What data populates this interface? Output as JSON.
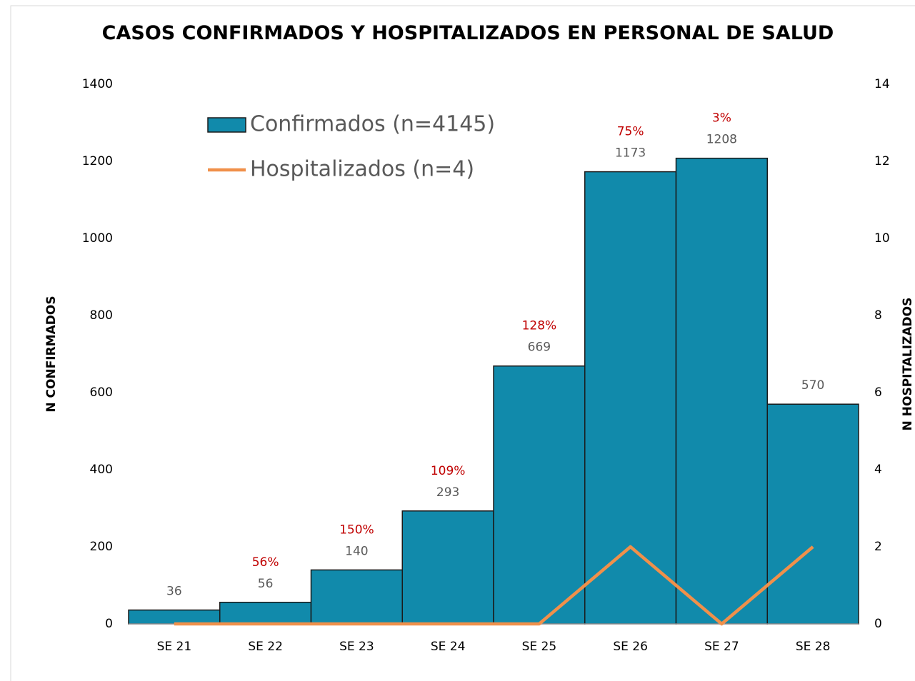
{
  "chart_data": {
    "type": "bar",
    "title": "CASOS CONFIRMADOS Y HOSPITALIZADOS EN PERSONAL DE SALUD",
    "ylabel": "N CONFIRMADOS",
    "y2label": "N HOSPITALIZADOS",
    "categories": [
      "SE 21",
      "SE 22",
      "SE 23",
      "SE 24",
      "SE 25",
      "SE 26",
      "SE 27",
      "SE 28"
    ],
    "series": [
      {
        "name": "Confirmados (n=4145)",
        "type": "bar",
        "color": "#118aab",
        "values": [
          36,
          56,
          140,
          293,
          669,
          1173,
          1208,
          570
        ]
      },
      {
        "name": "Hospitalizados (n=4)",
        "type": "line",
        "axis": "y2",
        "color": "#f0904a",
        "values": [
          0,
          0,
          0,
          0,
          0,
          2,
          0,
          2
        ]
      }
    ],
    "annotations": {
      "color": "#c00000",
      "values": [
        null,
        56,
        150,
        109,
        128,
        75,
        3,
        null
      ],
      "value_labels": [
        null,
        "56%",
        "150%",
        "109%",
        "128%",
        "75%",
        "3%",
        null
      ]
    },
    "ylim": [
      0,
      1400
    ],
    "yticks": [
      0,
      200,
      400,
      600,
      800,
      1000,
      1200,
      1400
    ],
    "y2lim": [
      0,
      14
    ],
    "y2ticks": [
      0,
      2,
      4,
      6,
      8,
      10,
      12,
      14
    ],
    "legend": "upper left"
  }
}
